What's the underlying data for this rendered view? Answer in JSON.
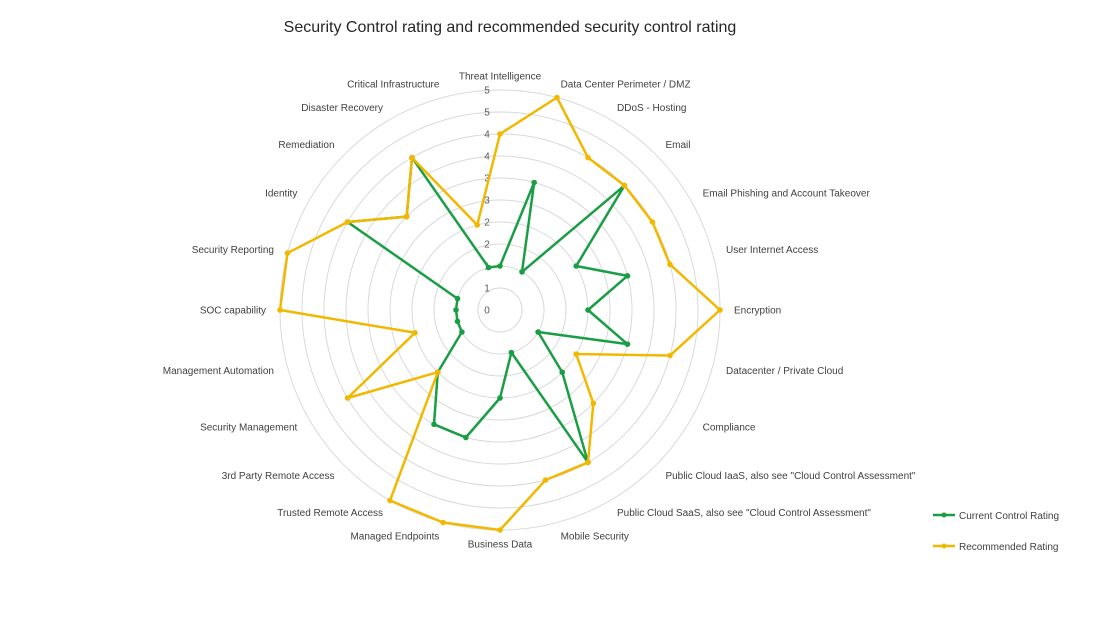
{
  "chart_data": {
    "type": "radar",
    "title": "Security Control rating and recommended security control rating",
    "categories": [
      "Threat Intelligence",
      "Data Center Perimeter / DMZ",
      "DDoS - Hosting",
      "Email",
      "Email Phishing and Account Takeover",
      "User Internet Access",
      "Encryption",
      "Datacenter / Private Cloud",
      "Compliance",
      "Public Cloud IaaS, also see \"Cloud Control Assessment\"",
      "Public Cloud SaaS, also see \"Cloud Control Assessment\"",
      "Mobile Security",
      "Business Data",
      "Managed Endpoints",
      "Trusted Remote Access",
      "3rd Party Remote Access",
      "Security Management",
      "Management Automation",
      "SOC capability",
      "Security Reporting",
      "Identity",
      "Remediation",
      "Disaster Recovery",
      "Critical Infrastructure"
    ],
    "series": [
      {
        "name": "Current Control Rating",
        "color": "#1a9e45",
        "values": [
          1,
          3,
          1,
          4,
          2,
          3,
          2,
          3,
          1,
          2,
          4,
          1,
          2,
          3,
          3,
          2,
          1,
          1,
          1,
          1,
          4,
          3,
          4,
          1
        ]
      },
      {
        "name": "Recommended Rating",
        "color": "#f2b800",
        "values": [
          4,
          5,
          4,
          4,
          4,
          4,
          5,
          4,
          2,
          3,
          4,
          4,
          5,
          5,
          5,
          2,
          4,
          2,
          5,
          5,
          4,
          3,
          4,
          2
        ]
      }
    ],
    "rlim": [
      0,
      5
    ],
    "tick_step": 0.5,
    "tick_labels": [
      "0",
      "1",
      "1",
      "2",
      "2",
      "3",
      "3",
      "4",
      "4",
      "5",
      "5"
    ],
    "grid": true,
    "legend_position": "right"
  }
}
